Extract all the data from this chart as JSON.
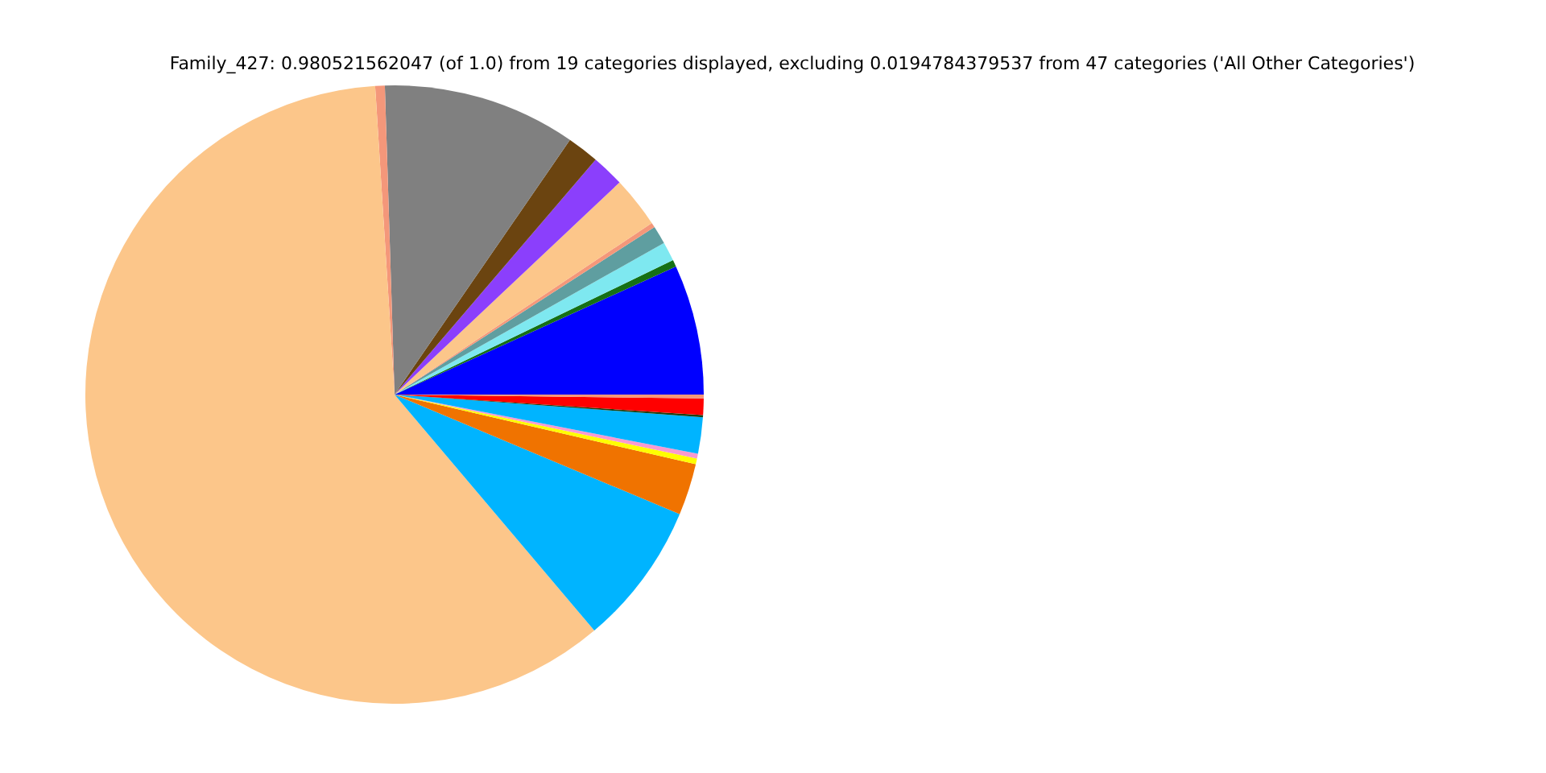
{
  "chart_data": {
    "type": "pie",
    "title": "Family_427: 0.980521562047 (of 1.0) from 19 categories displayed, excluding 0.0194784379537 from 47 categories ('All Other Categories')",
    "categories": [
      null,
      null,
      null,
      null,
      null,
      null,
      null,
      null,
      null,
      null,
      null,
      null,
      null,
      null,
      null,
      null,
      null,
      null,
      null
    ],
    "values": [
      6.8,
      0.36,
      1.0,
      0.95,
      0.25,
      2.67,
      1.7,
      1.67,
      10.1,
      0.5,
      60.18,
      7.5,
      2.7,
      0.3,
      0.25,
      1.9,
      0.11,
      0.86,
      0.2
    ],
    "colors": [
      "#0000ff",
      "#157015",
      "#7ee8f0",
      "#5f9ea0",
      "#f4977a",
      "#fcc68a",
      "#8b3ffc",
      "#6b4410",
      "#808080",
      "#f4977a",
      "#fcc68a",
      "#00b4ff",
      "#f07300",
      "#ffff00",
      "#f89ad0",
      "#00b4ff",
      "#1e4010",
      "#ff0000",
      "#f4977a"
    ]
  }
}
